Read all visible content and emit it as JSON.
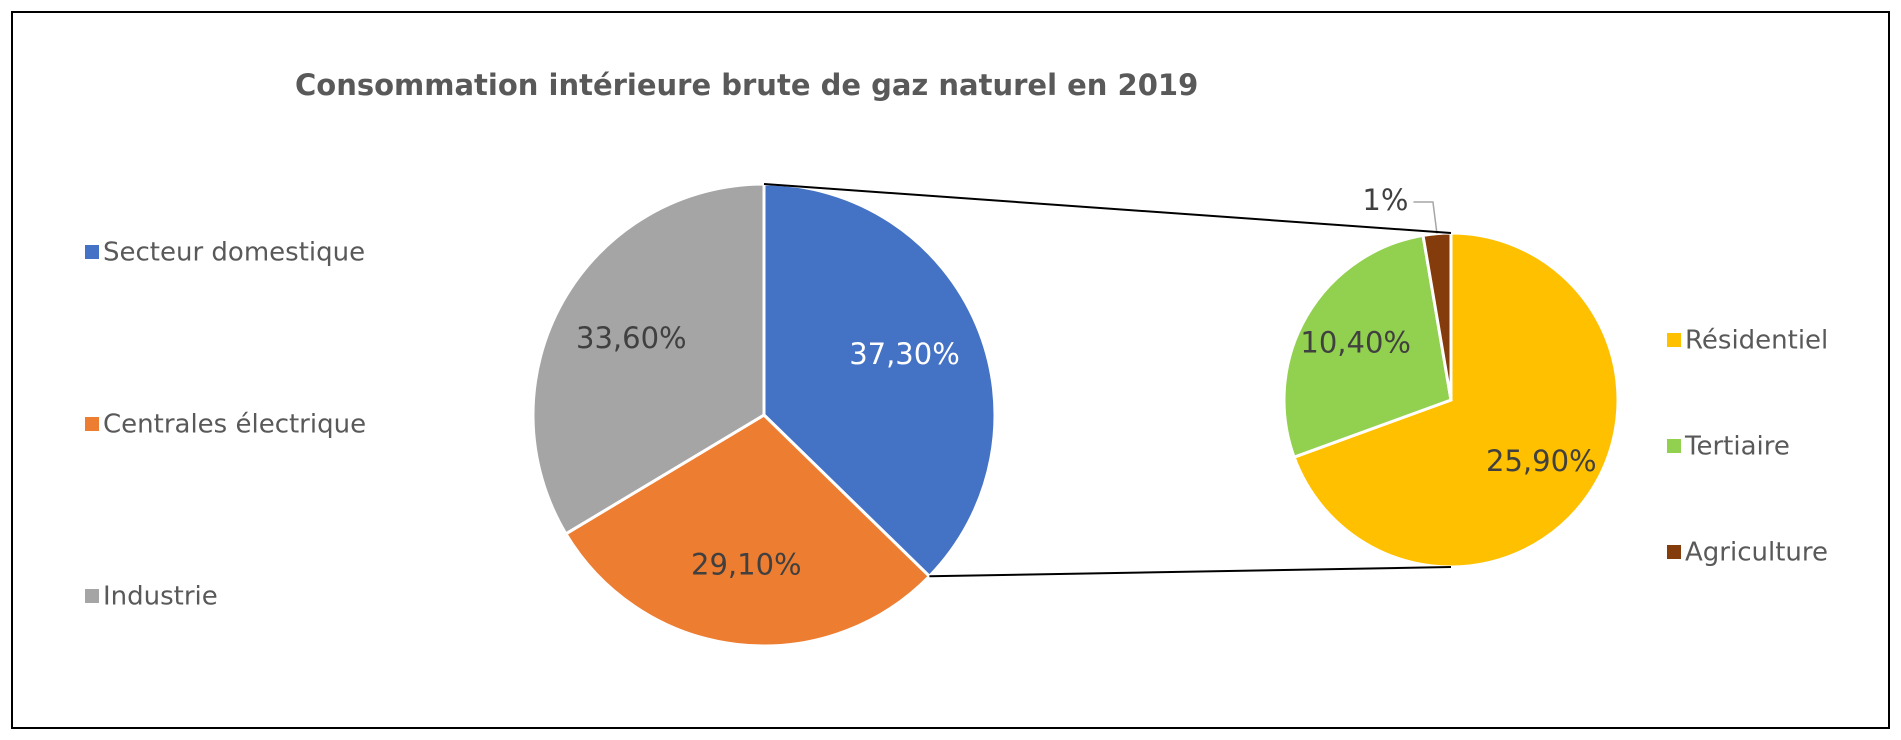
{
  "chart_data": [
    {
      "type": "pie",
      "title": "Consommation intérieure brute de gaz naturel en 2019",
      "categories": [
        "Secteur domestique",
        "Centrales électrique",
        "Industrie"
      ],
      "values": [
        37.3,
        29.1,
        33.6
      ],
      "value_labels": [
        "37,30%",
        "29,10%",
        "33,60%"
      ],
      "colors": [
        "#4472c4",
        "#ed7d31",
        "#a5a5a5"
      ],
      "legend": "left"
    },
    {
      "type": "pie",
      "categories": [
        "Résidentiel",
        "Tertiaire",
        "Agriculture"
      ],
      "values": [
        25.9,
        10.4,
        1
      ],
      "value_labels": [
        "25,90%",
        "10,40%",
        "1%"
      ],
      "colors": [
        "#ffc000",
        "#92d050",
        "#843c0c"
      ],
      "legend": "right"
    }
  ]
}
